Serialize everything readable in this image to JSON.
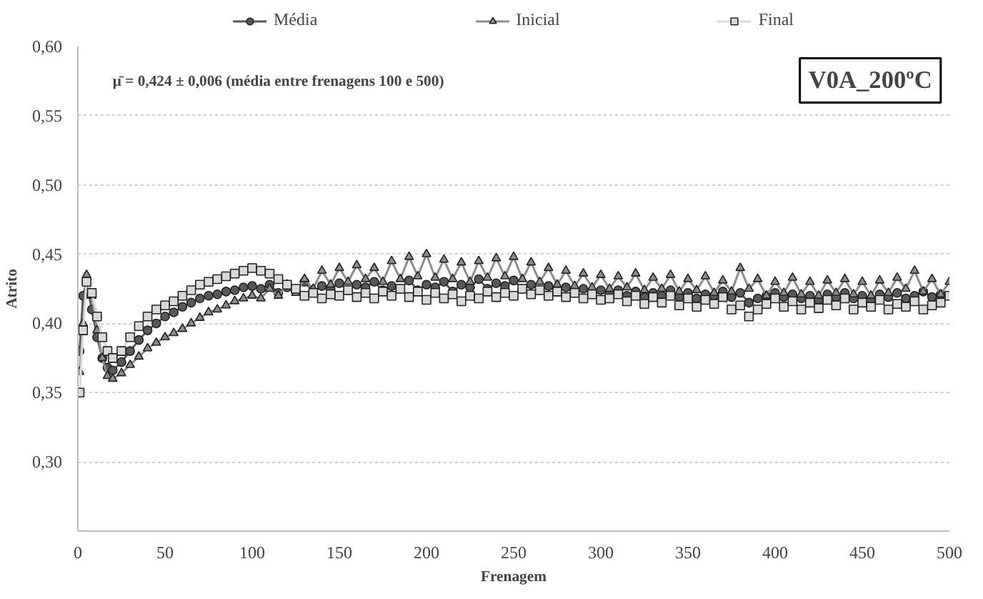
{
  "chart_data": {
    "type": "line",
    "xlabel": "Frenagem",
    "ylabel": "Atrito",
    "annotations": [
      "μ̄ = 0,424 ± 0,006 (média entre frenagens 100 e 500)",
      "V0A_200ºC"
    ],
    "x": [
      1,
      3,
      5,
      8,
      11,
      14,
      17,
      20,
      25,
      30,
      35,
      40,
      45,
      50,
      55,
      60,
      65,
      70,
      75,
      80,
      85,
      90,
      95,
      100,
      105,
      110,
      115,
      120,
      125,
      130,
      135,
      140,
      145,
      150,
      155,
      160,
      165,
      170,
      175,
      180,
      185,
      190,
      195,
      200,
      205,
      210,
      215,
      220,
      225,
      230,
      235,
      240,
      245,
      250,
      255,
      260,
      265,
      270,
      275,
      280,
      285,
      290,
      295,
      300,
      305,
      310,
      315,
      320,
      325,
      330,
      335,
      340,
      345,
      350,
      355,
      360,
      365,
      370,
      375,
      380,
      385,
      390,
      395,
      400,
      405,
      410,
      415,
      420,
      425,
      430,
      435,
      440,
      445,
      450,
      455,
      460,
      465,
      470,
      475,
      480,
      485,
      490,
      495,
      500
    ],
    "series": [
      {
        "name": "Média",
        "color": "#595959",
        "marker": "circle",
        "values": [
          0.38,
          0.42,
          0.43,
          0.41,
          0.39,
          0.375,
          0.368,
          0.366,
          0.372,
          0.38,
          0.388,
          0.395,
          0.4,
          0.405,
          0.408,
          0.412,
          0.415,
          0.418,
          0.42,
          0.421,
          0.423,
          0.424,
          0.426,
          0.427,
          0.425,
          0.428,
          0.422,
          0.426,
          0.424,
          0.43,
          0.423,
          0.427,
          0.425,
          0.429,
          0.424,
          0.428,
          0.426,
          0.43,
          0.424,
          0.427,
          0.425,
          0.431,
          0.424,
          0.428,
          0.426,
          0.43,
          0.423,
          0.428,
          0.426,
          0.432,
          0.425,
          0.429,
          0.427,
          0.431,
          0.425,
          0.428,
          0.424,
          0.427,
          0.423,
          0.426,
          0.422,
          0.425,
          0.421,
          0.424,
          0.421,
          0.424,
          0.42,
          0.423,
          0.419,
          0.422,
          0.42,
          0.424,
          0.419,
          0.422,
          0.418,
          0.421,
          0.42,
          0.423,
          0.419,
          0.422,
          0.415,
          0.418,
          0.42,
          0.422,
          0.419,
          0.421,
          0.418,
          0.42,
          0.417,
          0.421,
          0.419,
          0.422,
          0.418,
          0.42,
          0.417,
          0.421,
          0.419,
          0.422,
          0.418,
          0.42,
          0.423,
          0.419,
          0.421,
          0.42
        ]
      },
      {
        "name": "Inicial",
        "color": "#8c8c8c",
        "marker": "triangle",
        "values": [
          0.365,
          0.4,
          0.435,
          0.42,
          0.395,
          0.375,
          0.362,
          0.36,
          0.364,
          0.37,
          0.376,
          0.382,
          0.386,
          0.39,
          0.393,
          0.396,
          0.4,
          0.404,
          0.408,
          0.41,
          0.413,
          0.416,
          0.418,
          0.42,
          0.418,
          0.425,
          0.42,
          0.428,
          0.422,
          0.432,
          0.425,
          0.438,
          0.428,
          0.44,
          0.43,
          0.442,
          0.432,
          0.44,
          0.43,
          0.445,
          0.432,
          0.448,
          0.434,
          0.45,
          0.433,
          0.446,
          0.432,
          0.444,
          0.43,
          0.445,
          0.433,
          0.447,
          0.434,
          0.448,
          0.432,
          0.444,
          0.43,
          0.44,
          0.428,
          0.438,
          0.427,
          0.436,
          0.426,
          0.435,
          0.425,
          0.434,
          0.426,
          0.436,
          0.424,
          0.433,
          0.425,
          0.435,
          0.423,
          0.432,
          0.424,
          0.434,
          0.422,
          0.431,
          0.423,
          0.44,
          0.425,
          0.432,
          0.42,
          0.43,
          0.422,
          0.433,
          0.421,
          0.43,
          0.42,
          0.431,
          0.422,
          0.432,
          0.421,
          0.43,
          0.42,
          0.431,
          0.422,
          0.433,
          0.425,
          0.438,
          0.423,
          0.432,
          0.421,
          0.43
        ]
      },
      {
        "name": "Final",
        "color": "#d9d9d9",
        "marker": "square",
        "values": [
          0.35,
          0.395,
          0.43,
          0.422,
          0.405,
          0.39,
          0.38,
          0.375,
          0.38,
          0.39,
          0.398,
          0.405,
          0.41,
          0.413,
          0.416,
          0.42,
          0.424,
          0.428,
          0.43,
          0.432,
          0.434,
          0.436,
          0.438,
          0.44,
          0.438,
          0.436,
          0.432,
          0.428,
          0.425,
          0.42,
          0.422,
          0.418,
          0.421,
          0.42,
          0.424,
          0.419,
          0.422,
          0.418,
          0.423,
          0.42,
          0.425,
          0.419,
          0.423,
          0.417,
          0.422,
          0.418,
          0.421,
          0.416,
          0.42,
          0.418,
          0.423,
          0.419,
          0.422,
          0.42,
          0.425,
          0.421,
          0.424,
          0.42,
          0.423,
          0.419,
          0.422,
          0.418,
          0.421,
          0.417,
          0.418,
          0.421,
          0.416,
          0.42,
          0.414,
          0.419,
          0.415,
          0.42,
          0.413,
          0.418,
          0.412,
          0.417,
          0.414,
          0.419,
          0.41,
          0.413,
          0.405,
          0.41,
          0.414,
          0.418,
          0.412,
          0.416,
          0.41,
          0.415,
          0.411,
          0.417,
          0.413,
          0.418,
          0.41,
          0.415,
          0.412,
          0.417,
          0.41,
          0.414,
          0.412,
          0.416,
          0.41,
          0.413,
          0.415,
          0.42
        ]
      }
    ],
    "xlim": [
      0,
      500
    ],
    "xticks": [
      0,
      50,
      100,
      150,
      200,
      250,
      300,
      350,
      400,
      450,
      500
    ],
    "ylim": [
      0.25,
      0.6
    ],
    "yticks": [
      {
        "value": 0.3,
        "label": "0,30"
      },
      {
        "value": 0.35,
        "label": "0,35"
      },
      {
        "value": 0.4,
        "label": "0,40"
      },
      {
        "value": 0.45,
        "label": "0,45"
      },
      {
        "value": 0.5,
        "label": "0,50"
      },
      {
        "value": 0.55,
        "label": "0,55"
      },
      {
        "value": 0.6,
        "label": "0,60"
      }
    ],
    "grid": "y",
    "legend": "top",
    "line_style": "solid"
  }
}
